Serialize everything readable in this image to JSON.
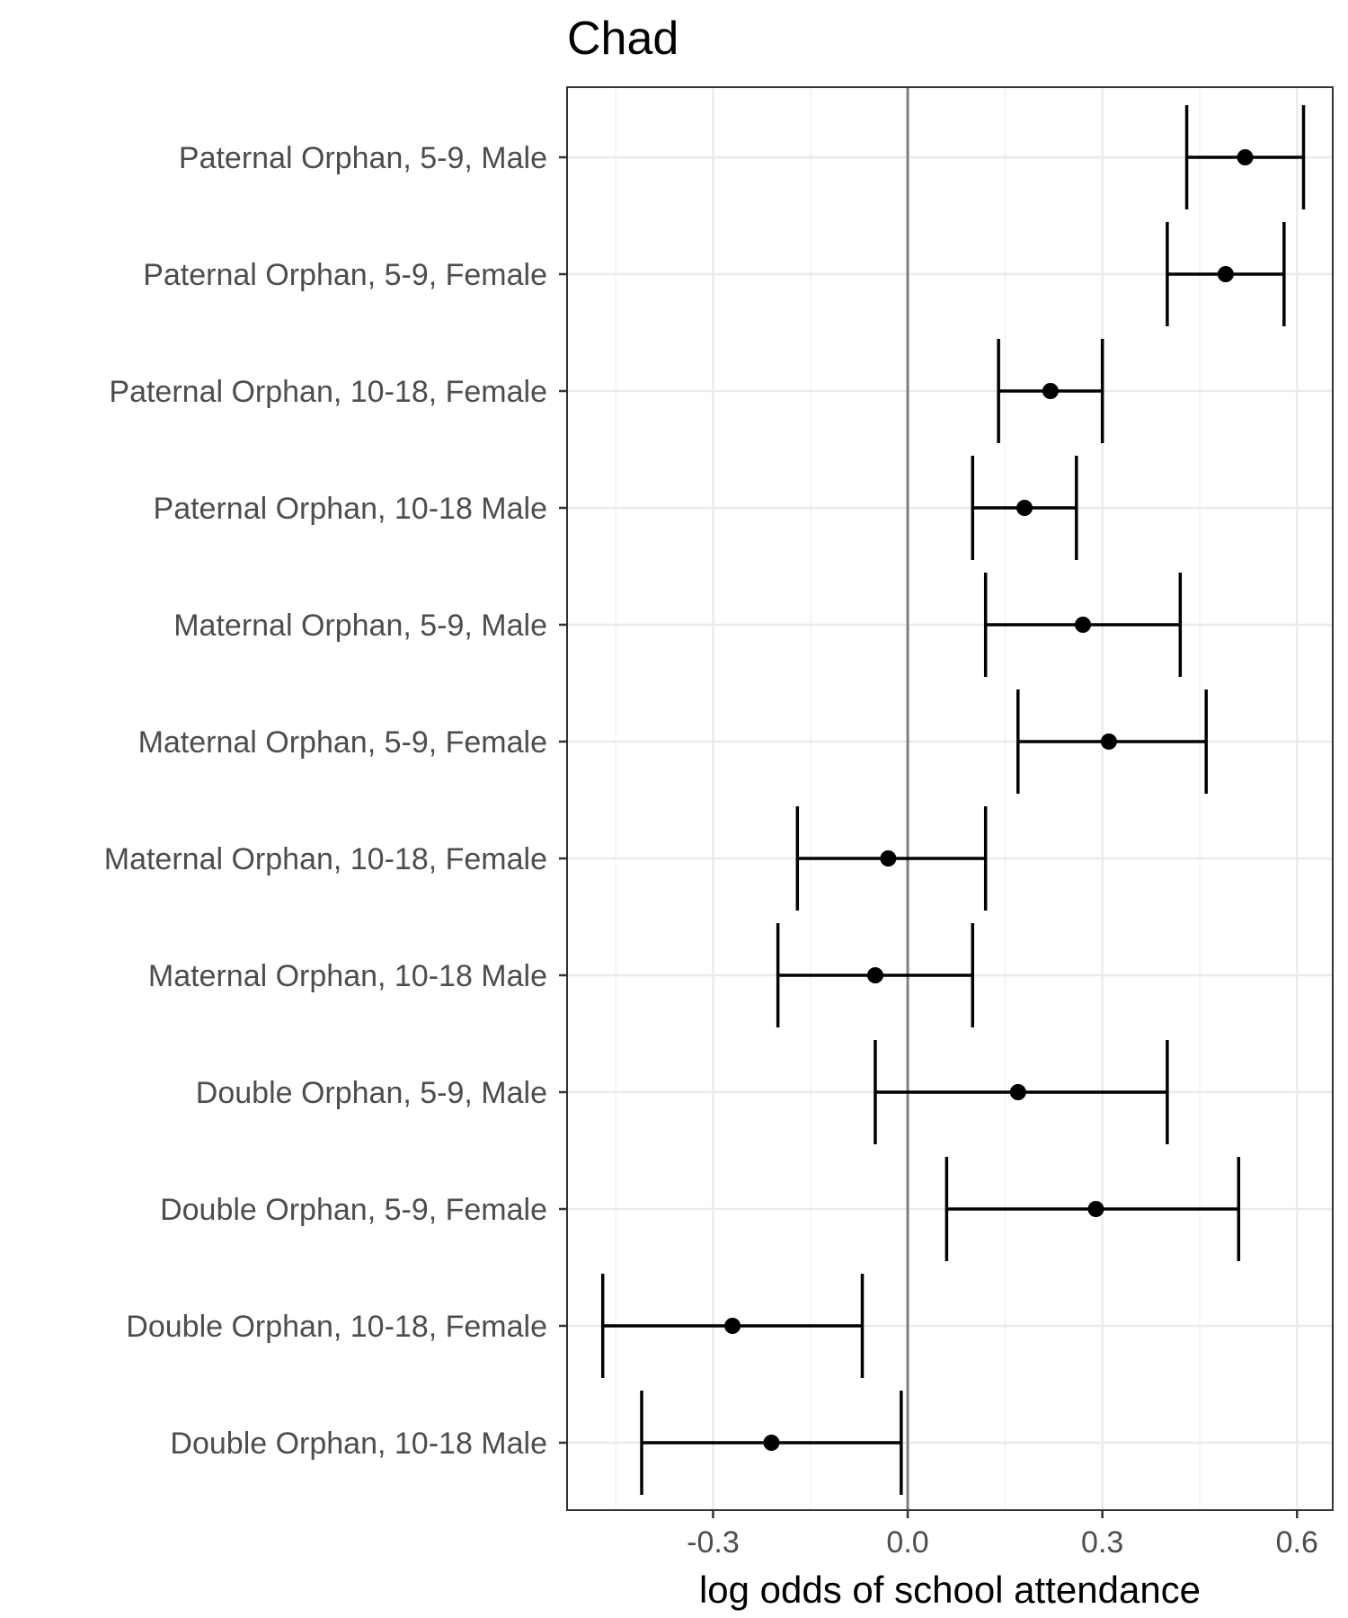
{
  "chart_data": {
    "type": "scatter",
    "title": "Chad",
    "xlabel": "log odds of school attendance",
    "ylabel": "",
    "xlim": [
      -0.525,
      0.655
    ],
    "xticks": [
      -0.3,
      0.0,
      0.3,
      0.6
    ],
    "xtick_labels": [
      "-0.3",
      "0.0",
      "0.3",
      "0.6"
    ],
    "reference_line_x": 0.0,
    "grid": true,
    "categories": [
      "Paternal Orphan, 5-9, Male",
      "Paternal Orphan, 5-9, Female",
      "Paternal Orphan, 10-18, Female",
      "Paternal Orphan, 10-18 Male",
      "Maternal Orphan, 5-9, Male",
      "Maternal Orphan, 5-9, Female",
      "Maternal Orphan, 10-18, Female",
      "Maternal Orphan, 10-18 Male",
      "Double Orphan, 5-9, Male",
      "Double Orphan, 5-9, Female",
      "Double Orphan, 10-18, Female",
      "Double Orphan, 10-18 Male"
    ],
    "estimates": [
      0.52,
      0.49,
      0.22,
      0.18,
      0.27,
      0.31,
      -0.03,
      -0.05,
      0.17,
      0.29,
      -0.27,
      -0.21
    ],
    "lower": [
      0.43,
      0.4,
      0.14,
      0.1,
      0.12,
      0.17,
      -0.17,
      -0.2,
      -0.05,
      0.06,
      -0.47,
      -0.41
    ],
    "upper": [
      0.61,
      0.58,
      0.3,
      0.26,
      0.42,
      0.46,
      0.12,
      0.1,
      0.4,
      0.51,
      -0.07,
      -0.01
    ],
    "colors": {
      "point": "#000000",
      "errorbar": "#000000",
      "reference_line": "#808080",
      "grid_major": "#ebebeb",
      "grid_minor": "#f2f2f2",
      "panel_border": "#333333",
      "tick_label": "#4d4d4d"
    }
  }
}
